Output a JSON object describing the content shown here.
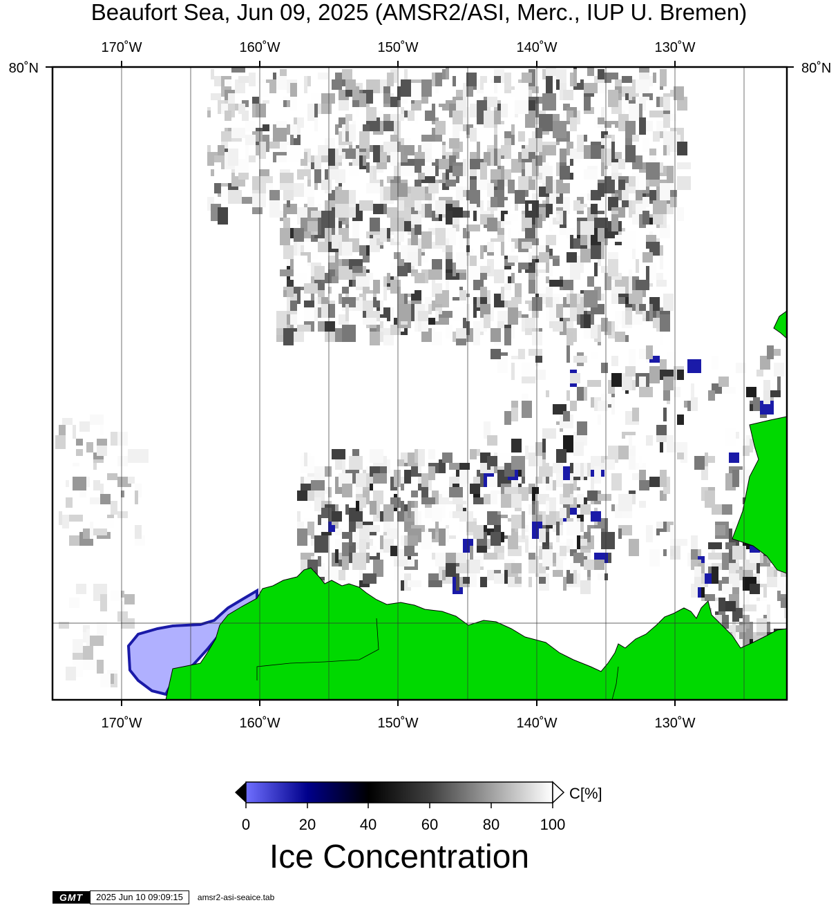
{
  "title": "Beaufort Sea, Jun 09, 2025 (AMSR2/ASI, Merc., IUP U. Bremen)",
  "map": {
    "longitude_labels": [
      "170˚W",
      "160˚W",
      "150˚W",
      "140˚W",
      "130˚W"
    ],
    "latitude_labels": [
      "80˚N"
    ],
    "colors": {
      "land": "#00d900",
      "open_water": "#ffffff",
      "low_concentration": "#b0b0ff",
      "mid_blue": "#1a1aa8",
      "dark": "#000000",
      "gridline": "#333333"
    }
  },
  "colorbar": {
    "ticks": [
      "0",
      "20",
      "40",
      "60",
      "80",
      "100"
    ],
    "unit_label": "C[%]",
    "title": "Ice Concentration",
    "colors": [
      "#6f6fff",
      "#000080",
      "#000000",
      "#808080",
      "#ffffff"
    ]
  },
  "footer": {
    "logo": "GMT",
    "timestamp": "2025 Jun 10 09:09:15",
    "filename": "amsr2-asi-seaice.tab"
  }
}
